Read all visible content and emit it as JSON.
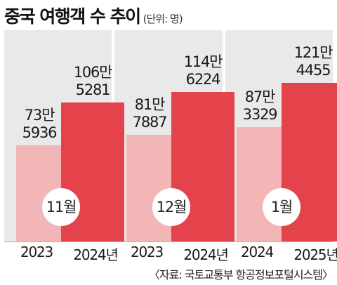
{
  "title": "중국 여행객 수 추이",
  "unit": "(단위: 명)",
  "source": "〈자료: 국토교통부 항공정보포털시스템〉",
  "colors": {
    "prev": "#f3b6b6",
    "curr": "#e5434c",
    "panel": "#e9e9e9",
    "badge": "#ffffff"
  },
  "chart_data": {
    "type": "bar",
    "title": "중국 여행객 수 추이",
    "unit": "(단위: 명)",
    "groups": [
      {
        "month": "11월",
        "bars": [
          {
            "label": "2023",
            "value": 735936,
            "text_line1": "73만",
            "text_line2": "5936"
          },
          {
            "label": "2024년",
            "value": 1065281,
            "text_line1": "106만",
            "text_line2": "5281"
          }
        ]
      },
      {
        "month": "12월",
        "bars": [
          {
            "label": "2023",
            "value": 817887,
            "text_line1": "81만",
            "text_line2": "7887"
          },
          {
            "label": "2024년",
            "value": 1146224,
            "text_line1": "114만",
            "text_line2": "6224"
          }
        ]
      },
      {
        "month": "1월",
        "bars": [
          {
            "label": "2024",
            "value": 873329,
            "text_line1": "87만",
            "text_line2": "3329"
          },
          {
            "label": "2025년",
            "value": 1214455,
            "text_line1": "121만",
            "text_line2": "4455"
          }
        ]
      }
    ],
    "grid": false,
    "legend": "none"
  }
}
